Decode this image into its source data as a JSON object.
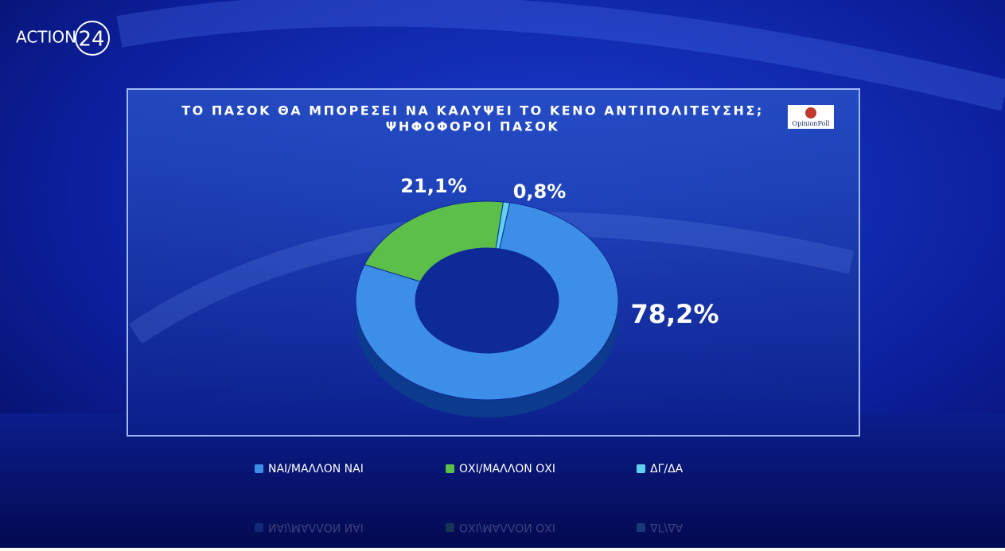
{
  "brand": {
    "name": "ACTION",
    "number": "24"
  },
  "chart_data": {
    "type": "donut",
    "title": "ΤΟ ΠΑΣΟΚ ΘΑ ΜΠΟΡΕΣΕΙ ΝΑ ΚΑΛΥΨΕΙ ΤΟ ΚΕΝΟ ΑΝΤΙΠΟΛΙΤΕΥΣΗΣ;",
    "subtitle": "ΨΗΦΟΦΟΡΟΙ ΠΑΣΟΚ",
    "source": "OpinionPoll",
    "categories": [
      "ΝΑΙ/ΜΑΛΛΟΝ ΝΑΙ",
      "ΟΧΙ/ΜΑΛΛΟΝ ΟΧΙ",
      "ΔΓ/ΔΑ"
    ],
    "values": [
      78.2,
      21.1,
      0.8
    ],
    "value_labels": [
      "78,2%",
      "21,1%",
      "0,8%"
    ],
    "colors": [
      "#3d8ee6",
      "#5cbf4a",
      "#5fd0f0"
    ],
    "legend": "bottom"
  }
}
